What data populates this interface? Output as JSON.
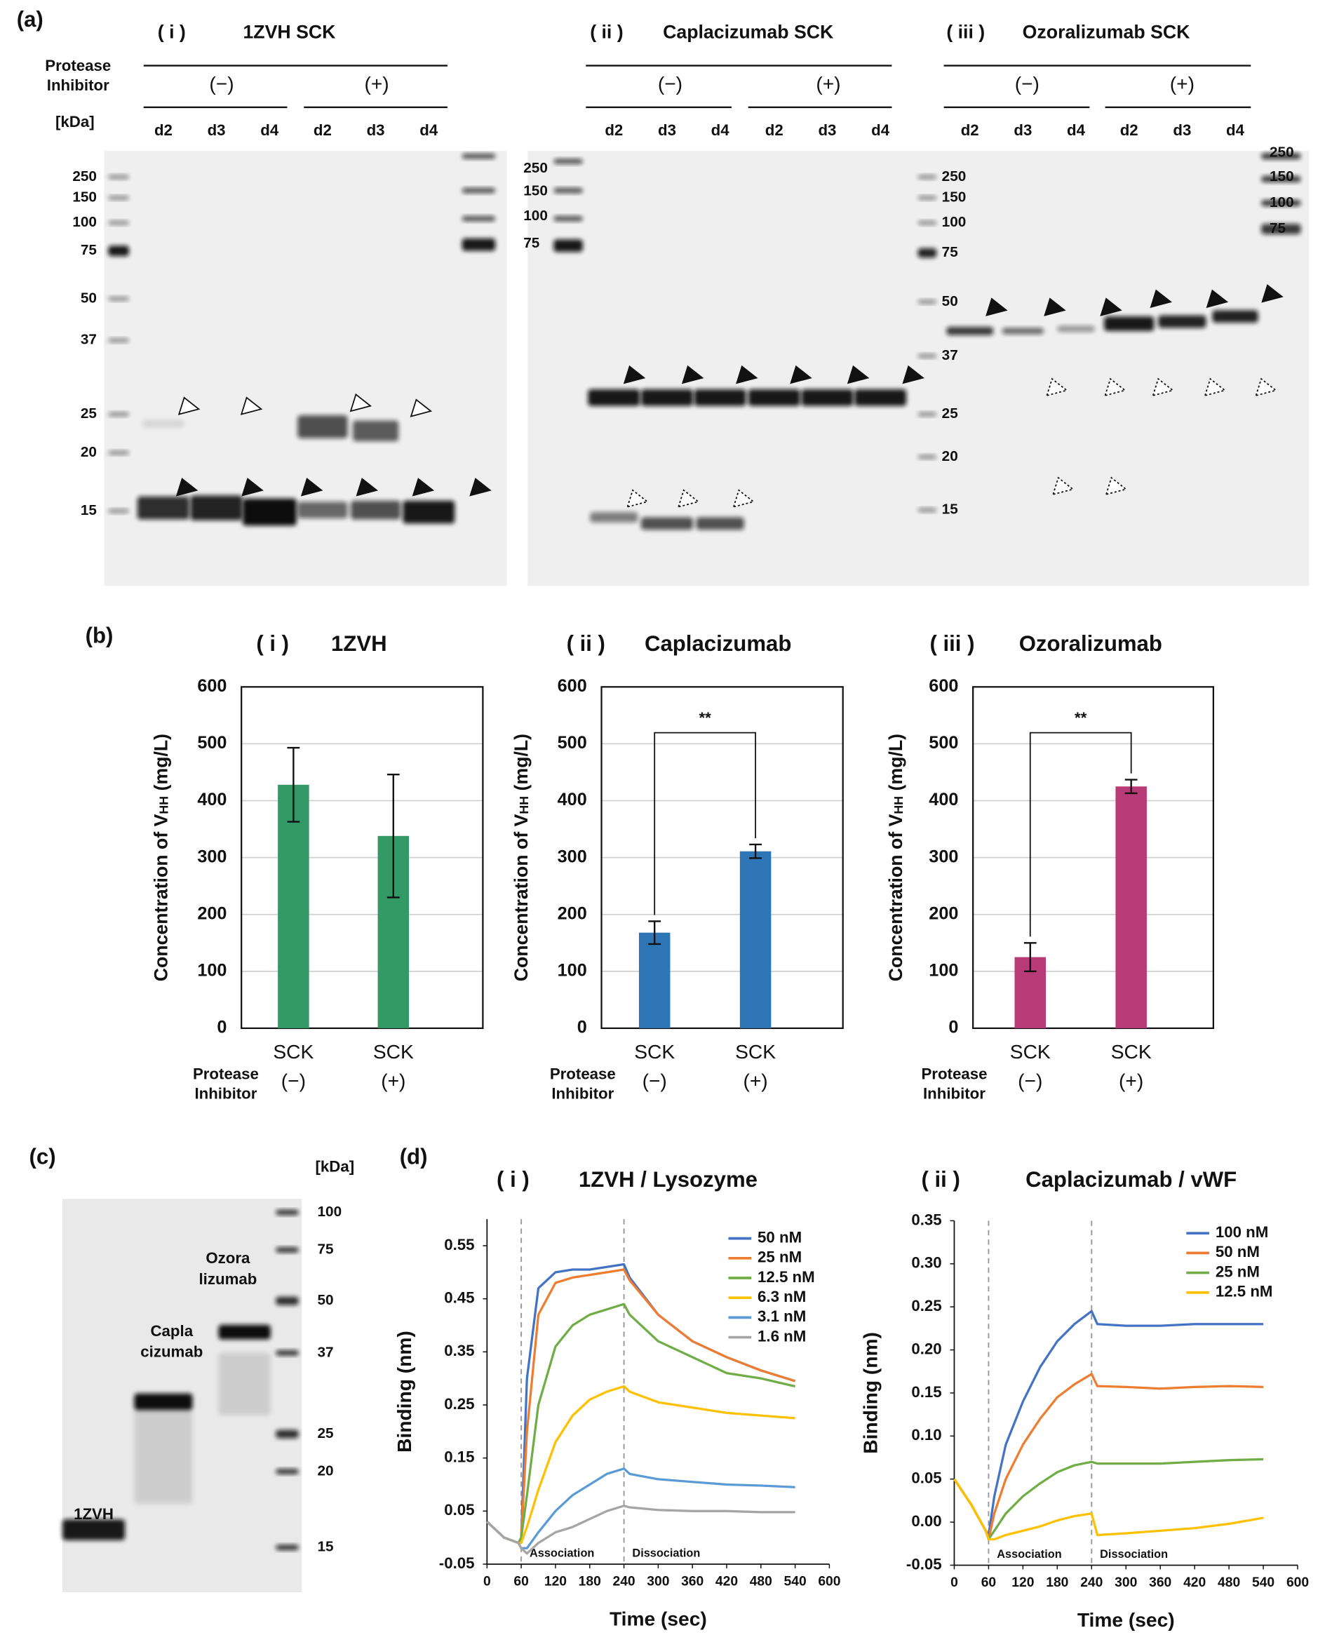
{
  "figure": {
    "a": "(a)",
    "b": "(b)",
    "c": "(c)",
    "d": "(d)"
  },
  "gel_a": {
    "row_label": [
      "Protease",
      "Inhibitor"
    ],
    "unit": "[kDa]",
    "gels": [
      {
        "numeral": "( i )",
        "title": "1ZVH SCK",
        "groups": [
          "(−)",
          "(+)"
        ],
        "lanes": [
          "d2",
          "d3",
          "d4",
          "d2",
          "d3",
          "d4"
        ]
      },
      {
        "numeral": "( ii )",
        "title": "Caplacizumab SCK",
        "groups": [
          "(−)",
          "(+)"
        ],
        "lanes": [
          "d2",
          "d3",
          "d4",
          "d2",
          "d3",
          "d4"
        ]
      },
      {
        "numeral": "( iii )",
        "title": "Ozoralizumab SCK",
        "groups": [
          "(−)",
          "(+)"
        ],
        "lanes": [
          "d2",
          "d3",
          "d4",
          "d2",
          "d3",
          "d4"
        ]
      }
    ],
    "markers": [
      [
        "250",
        "150",
        "100",
        "75",
        "50",
        "37",
        "25",
        "20",
        "15"
      ],
      [
        "250",
        "150",
        "100",
        "75"
      ],
      [
        "250",
        "150",
        "100",
        "75",
        "50",
        "37",
        "25",
        "20",
        "15"
      ],
      [
        "250",
        "150",
        "100",
        "75"
      ]
    ]
  },
  "gel_c": {
    "unit": "[kDa]",
    "markers": [
      "100",
      "75",
      "50",
      "37",
      "25",
      "20",
      "15"
    ],
    "lanes": [
      [
        "1ZVH"
      ],
      [
        "Capla",
        "cizumab"
      ],
      [
        "Ozora",
        "lizumab"
      ]
    ]
  },
  "chart_data": [
    {
      "type": "bar",
      "panel": "( i )",
      "title": "1ZVH",
      "ylabel": [
        "Concentration of V",
        "HH",
        " (mg/L)"
      ],
      "categories": [
        "SCK",
        "SCK"
      ],
      "conditions": [
        "(−)",
        "(+)"
      ],
      "condition_label": [
        "Protease",
        "Inhibitor"
      ],
      "values": [
        428,
        338
      ],
      "errors": [
        65,
        108
      ],
      "color": "#339966",
      "ylim": [
        0,
        600
      ],
      "yticks": [
        0,
        100,
        200,
        300,
        400,
        500,
        600
      ],
      "grid": true
    },
    {
      "type": "bar",
      "panel": "( ii )",
      "title": "Caplacizumab",
      "ylabel": [
        "Concentration of V",
        "HH",
        " (mg/L)"
      ],
      "categories": [
        "SCK",
        "SCK"
      ],
      "conditions": [
        "(−)",
        "(+)"
      ],
      "condition_label": [
        "Protease",
        "Inhibitor"
      ],
      "values": [
        168,
        311
      ],
      "errors": [
        20,
        12
      ],
      "color": "#2e75b6",
      "significance": "**",
      "ylim": [
        0,
        600
      ],
      "yticks": [
        0,
        100,
        200,
        300,
        400,
        500,
        600
      ],
      "grid": true
    },
    {
      "type": "bar",
      "panel": "( iii )",
      "title": "Ozoralizumab",
      "ylabel": [
        "Concentration of V",
        "HH",
        " (mg/L)"
      ],
      "categories": [
        "SCK",
        "SCK"
      ],
      "conditions": [
        "(−)",
        "(+)"
      ],
      "condition_label": [
        "Protease",
        "Inhibitor"
      ],
      "values": [
        125,
        425
      ],
      "errors": [
        25,
        12
      ],
      "color": "#b83b78",
      "significance": "**",
      "ylim": [
        0,
        600
      ],
      "yticks": [
        0,
        100,
        200,
        300,
        400,
        500,
        600
      ],
      "grid": true
    },
    {
      "type": "line",
      "panel": "( i )",
      "title": "1ZVH / Lysozyme",
      "xlabel": "Time (sec)",
      "ylabel": "Binding (nm)",
      "x": [
        0,
        30,
        55,
        60,
        70,
        90,
        120,
        150,
        180,
        210,
        240,
        250,
        300,
        360,
        420,
        480,
        540
      ],
      "series": [
        {
          "name": "50 nM",
          "color": "#4472c4",
          "values": [
            0.03,
            0.0,
            -0.01,
            0.0,
            0.3,
            0.47,
            0.5,
            0.505,
            0.505,
            0.51,
            0.515,
            0.49,
            0.42,
            0.37,
            0.34,
            0.315,
            0.295
          ]
        },
        {
          "name": "25 nM",
          "color": "#ed7d31",
          "values": [
            0.03,
            0.0,
            -0.01,
            0.0,
            0.2,
            0.42,
            0.48,
            0.49,
            0.495,
            0.5,
            0.505,
            0.485,
            0.42,
            0.37,
            0.34,
            0.315,
            0.295
          ]
        },
        {
          "name": "12.5 nM",
          "color": "#70ad47",
          "values": [
            0.03,
            0.0,
            -0.01,
            0.0,
            0.08,
            0.25,
            0.36,
            0.4,
            0.42,
            0.43,
            0.44,
            0.42,
            0.37,
            0.34,
            0.31,
            0.3,
            0.285
          ]
        },
        {
          "name": "6.3 nM",
          "color": "#ffc000",
          "values": [
            0.03,
            0.0,
            -0.01,
            -0.01,
            0.02,
            0.09,
            0.18,
            0.23,
            0.26,
            0.275,
            0.285,
            0.275,
            0.255,
            0.245,
            0.235,
            0.23,
            0.225
          ]
        },
        {
          "name": "3.1 nM",
          "color": "#5b9bd5",
          "values": [
            0.03,
            0.0,
            -0.01,
            -0.02,
            -0.02,
            0.01,
            0.05,
            0.08,
            0.1,
            0.12,
            0.13,
            0.12,
            0.11,
            0.105,
            0.1,
            0.098,
            0.095
          ]
        },
        {
          "name": "1.6 nM",
          "color": "#a5a5a5",
          "values": [
            0.03,
            0.0,
            -0.01,
            -0.02,
            -0.03,
            -0.01,
            0.01,
            0.02,
            0.035,
            0.05,
            0.06,
            0.057,
            0.052,
            0.05,
            0.05,
            0.048,
            0.048
          ]
        }
      ],
      "phases": [
        "Association",
        "Dissociation"
      ],
      "phase_bounds": [
        60,
        240
      ],
      "xlim": [
        0,
        600
      ],
      "xticks": [
        0,
        60,
        120,
        180,
        240,
        300,
        360,
        420,
        480,
        540,
        600
      ],
      "ylim": [
        -0.05,
        0.6
      ],
      "yticks": [
        -0.05,
        0.05,
        0.15,
        0.25,
        0.35,
        0.45,
        0.55
      ]
    },
    {
      "type": "line",
      "panel": "( ii )",
      "title": "Caplacizumab / vWF",
      "xlabel": "Time (sec)",
      "ylabel": "Binding (nm)",
      "x": [
        0,
        30,
        55,
        60,
        70,
        90,
        120,
        150,
        180,
        210,
        240,
        250,
        300,
        360,
        420,
        480,
        540
      ],
      "series": [
        {
          "name": "100 nM",
          "color": "#4472c4",
          "values": [
            0.05,
            0.02,
            -0.01,
            -0.015,
            0.03,
            0.09,
            0.14,
            0.18,
            0.21,
            0.23,
            0.245,
            0.23,
            0.228,
            0.228,
            0.23,
            0.23,
            0.23
          ]
        },
        {
          "name": "50 nM",
          "color": "#ed7d31",
          "values": [
            0.05,
            0.02,
            -0.01,
            -0.02,
            0.01,
            0.05,
            0.09,
            0.12,
            0.145,
            0.16,
            0.172,
            0.158,
            0.157,
            0.155,
            0.157,
            0.158,
            0.157
          ]
        },
        {
          "name": "25 nM",
          "color": "#70ad47",
          "values": [
            0.05,
            0.02,
            -0.01,
            -0.02,
            -0.01,
            0.01,
            0.03,
            0.045,
            0.058,
            0.066,
            0.07,
            0.068,
            0.068,
            0.068,
            0.07,
            0.072,
            0.073
          ]
        },
        {
          "name": "12.5 nM",
          "color": "#ffc000",
          "values": [
            0.05,
            0.02,
            -0.01,
            -0.02,
            -0.02,
            -0.015,
            -0.01,
            -0.005,
            0.002,
            0.007,
            0.01,
            -0.015,
            -0.013,
            -0.01,
            -0.007,
            -0.002,
            0.005
          ]
        }
      ],
      "phases": [
        "Association",
        "Dissociation"
      ],
      "phase_bounds": [
        60,
        240
      ],
      "xlim": [
        0,
        600
      ],
      "xticks": [
        0,
        60,
        120,
        180,
        240,
        300,
        360,
        420,
        480,
        540,
        600
      ],
      "ylim": [
        -0.05,
        0.35
      ],
      "yticks": [
        -0.05,
        {
          "value": 0,
          "label": "0.00"
        },
        0.05,
        {
          "value": 0.1,
          "label": "0.10"
        },
        0.15,
        {
          "value": 0.2,
          "label": "0.20"
        },
        0.25,
        {
          "value": 0.3,
          "label": "0.30"
        },
        0.35
      ]
    }
  ]
}
